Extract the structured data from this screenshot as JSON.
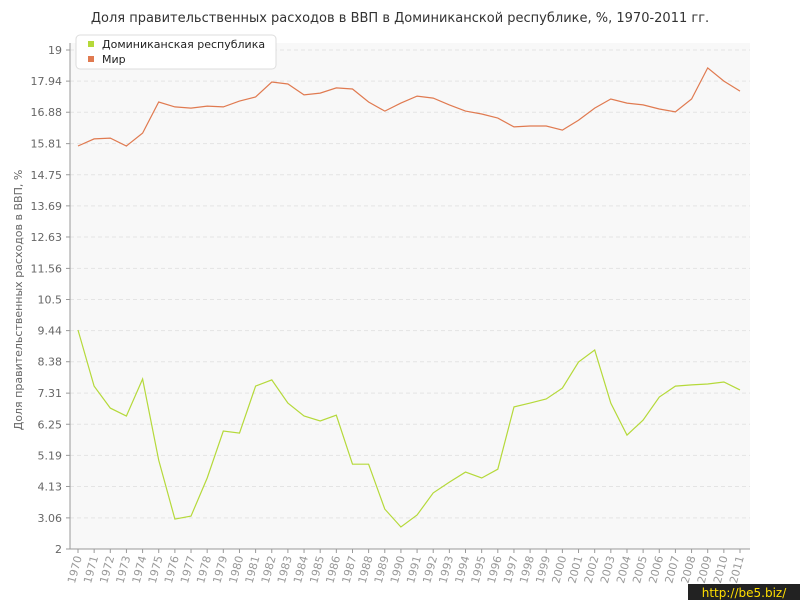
{
  "chart_data": {
    "type": "line",
    "title": "Доля правительственных расходов в ВВП в Доминиканской республике, %, 1970-2011 гг.",
    "y_label": "Доля правительственных расходов в ВВП, %",
    "watermark": "http://be5.biz/",
    "categories": [
      "1970",
      "1971",
      "1972",
      "1973",
      "1974",
      "1975",
      "1976",
      "1977",
      "1978",
      "1979",
      "1980",
      "1981",
      "1982",
      "1983",
      "1984",
      "1985",
      "1986",
      "1987",
      "1988",
      "1989",
      "1990",
      "1991",
      "1992",
      "1993",
      "1994",
      "1995",
      "1996",
      "1997",
      "1998",
      "1999",
      "2000",
      "2001",
      "2002",
      "2003",
      "2004",
      "2005",
      "2006",
      "2007",
      "2008",
      "2009",
      "2010",
      "2011"
    ],
    "series": [
      {
        "name": "Доминиканская республика",
        "color": "#b5d93a",
        "values": [
          9.46,
          7.55,
          6.8,
          6.53,
          7.79,
          5.03,
          3.02,
          3.12,
          4.42,
          6.02,
          5.95,
          7.55,
          7.76,
          6.97,
          6.53,
          6.36,
          6.56,
          4.89,
          4.89,
          3.36,
          2.75,
          3.16,
          3.91,
          4.28,
          4.62,
          4.42,
          4.72,
          6.84,
          6.97,
          7.11,
          7.48,
          8.37,
          8.78,
          6.97,
          5.88,
          6.39,
          7.18,
          7.55,
          7.59,
          7.62,
          7.69,
          7.42
        ]
      },
      {
        "name": "Мир",
        "color": "#e07a50",
        "values": [
          15.73,
          15.97,
          16.0,
          15.73,
          16.17,
          17.23,
          17.06,
          17.02,
          17.09,
          17.06,
          17.26,
          17.4,
          17.91,
          17.84,
          17.47,
          17.53,
          17.71,
          17.67,
          17.23,
          16.92,
          17.19,
          17.43,
          17.36,
          17.13,
          16.92,
          16.82,
          16.68,
          16.38,
          16.41,
          16.41,
          16.27,
          16.61,
          17.02,
          17.33,
          17.19,
          17.13,
          16.99,
          16.89,
          17.33,
          18.39,
          17.94,
          17.6
        ]
      }
    ],
    "ylim": [
      2,
      19
    ],
    "yticks": [
      2,
      3.06,
      4.13,
      5.19,
      6.25,
      7.31,
      8.38,
      9.44,
      10.5,
      11.56,
      12.63,
      13.69,
      14.75,
      15.81,
      16.88,
      17.94,
      19
    ],
    "grid": true,
    "legend": "top-left"
  }
}
